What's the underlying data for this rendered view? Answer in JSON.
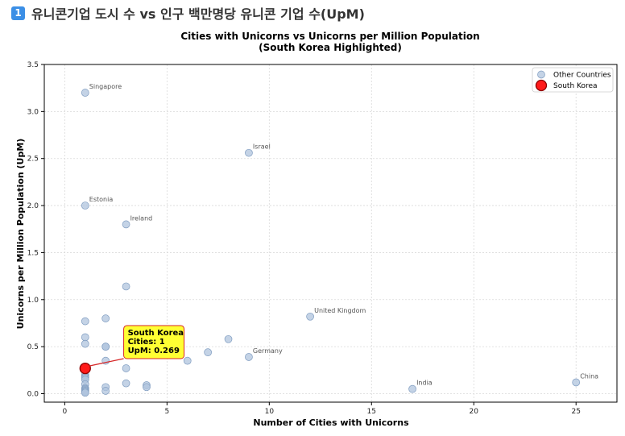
{
  "header": {
    "badge": "1",
    "title": "유니콘기업 도시 수 vs 인구 백만명당 유니콘 기업 수(UpM)"
  },
  "chart_data": {
    "type": "scatter",
    "title": "Cities with Unicorns vs Unicorns per Million Population",
    "subtitle": "(South Korea Highlighted)",
    "xlabel": "Number of Cities with Unicorns",
    "ylabel": "Unicorns per Million Population (UpM)",
    "xlim": [
      -1,
      27
    ],
    "ylim": [
      -0.09,
      3.5
    ],
    "xticks": [
      0,
      5,
      10,
      15,
      20,
      25
    ],
    "yticks": [
      0.0,
      0.5,
      1.0,
      1.5,
      2.0,
      2.5,
      3.0,
      3.5
    ],
    "grid": true,
    "legend_position": "top-right",
    "colors": {
      "other_fill": "#b0c4de",
      "other_stroke": "#7f9cc0",
      "highlight_fill": "#ff1a1a",
      "highlight_stroke": "#8b0000",
      "annotation_fill": "#ffff33",
      "annotation_stroke": "#d62728"
    },
    "series": [
      {
        "name": "Other Countries",
        "points": [
          {
            "x": 1,
            "y": 3.2,
            "label": "Singapore"
          },
          {
            "x": 9,
            "y": 2.56,
            "label": "Israel"
          },
          {
            "x": 1,
            "y": 2.0,
            "label": "Estonia"
          },
          {
            "x": 3,
            "y": 1.8,
            "label": "Ireland"
          },
          {
            "x": 3,
            "y": 1.14
          },
          {
            "x": 12,
            "y": 0.82,
            "label": "United Kingdom"
          },
          {
            "x": 2,
            "y": 0.8
          },
          {
            "x": 1,
            "y": 0.77
          },
          {
            "x": 1,
            "y": 0.6
          },
          {
            "x": 8,
            "y": 0.58
          },
          {
            "x": 1,
            "y": 0.53
          },
          {
            "x": 2,
            "y": 0.5
          },
          {
            "x": 2,
            "y": 0.5
          },
          {
            "x": 7,
            "y": 0.44
          },
          {
            "x": 9,
            "y": 0.39,
            "label": "Germany"
          },
          {
            "x": 6,
            "y": 0.35
          },
          {
            "x": 2,
            "y": 0.35
          },
          {
            "x": 3,
            "y": 0.27
          },
          {
            "x": 1,
            "y": 0.25
          },
          {
            "x": 1,
            "y": 0.2
          },
          {
            "x": 1,
            "y": 0.18
          },
          {
            "x": 1,
            "y": 0.17
          },
          {
            "x": 1,
            "y": 0.15
          },
          {
            "x": 25,
            "y": 0.12,
            "label": "China"
          },
          {
            "x": 3,
            "y": 0.11
          },
          {
            "x": 1,
            "y": 0.1
          },
          {
            "x": 4,
            "y": 0.09
          },
          {
            "x": 4,
            "y": 0.07
          },
          {
            "x": 2,
            "y": 0.07
          },
          {
            "x": 1,
            "y": 0.06
          },
          {
            "x": 1,
            "y": 0.05
          },
          {
            "x": 17,
            "y": 0.05,
            "label": "India"
          },
          {
            "x": 1,
            "y": 0.04
          },
          {
            "x": 1,
            "y": 0.03
          },
          {
            "x": 2,
            "y": 0.03
          },
          {
            "x": 1,
            "y": 0.02
          },
          {
            "x": 1,
            "y": 0.01
          }
        ]
      },
      {
        "name": "South Korea",
        "points": [
          {
            "x": 1,
            "y": 0.269
          }
        ]
      }
    ],
    "annotation": {
      "lines": [
        "South Korea",
        "Cities: 1",
        "UpM: 0.269"
      ],
      "text_x": 3,
      "text_y": 0.63
    }
  }
}
